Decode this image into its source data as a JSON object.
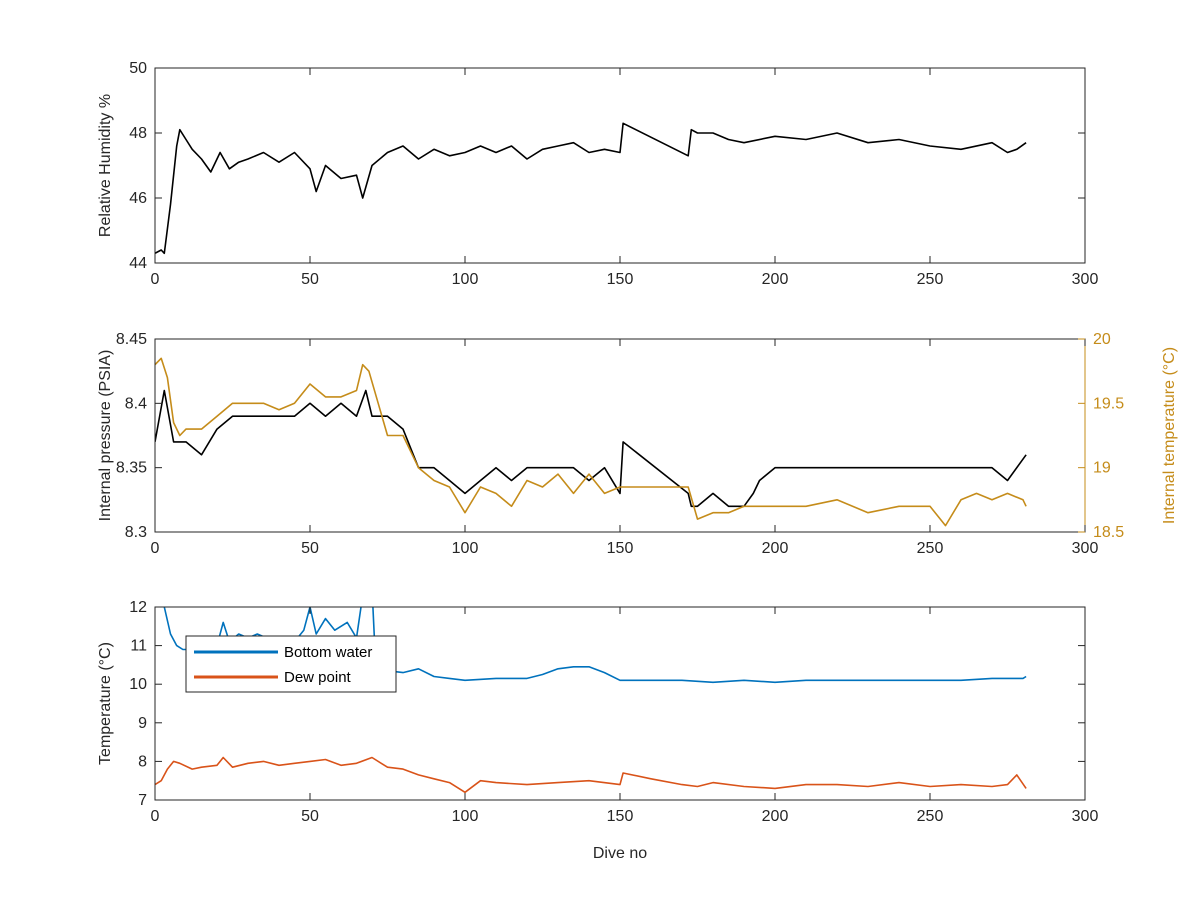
{
  "chart_data": [
    {
      "type": "line",
      "xlabel": "",
      "ylabel": "Relative Humidity %",
      "xlim": [
        0,
        300
      ],
      "ylim": [
        44,
        50
      ],
      "xticks": [
        "0",
        "50",
        "100",
        "150",
        "200",
        "250",
        "300"
      ],
      "yticks": [
        "44",
        "46",
        "48",
        "50"
      ],
      "series": [
        {
          "color": "#000000",
          "x": [
            0,
            2,
            3,
            5,
            7,
            8,
            10,
            12,
            15,
            18,
            21,
            24,
            27,
            30,
            35,
            40,
            45,
            50,
            52,
            55,
            60,
            65,
            67,
            70,
            75,
            80,
            85,
            90,
            95,
            100,
            105,
            110,
            115,
            120,
            125,
            130,
            135,
            140,
            145,
            150,
            151,
            172,
            173,
            175,
            180,
            185,
            190,
            200,
            210,
            220,
            230,
            240,
            250,
            260,
            270,
            275,
            278,
            281
          ],
          "y": [
            44.3,
            44.4,
            44.3,
            45.8,
            47.6,
            48.1,
            47.8,
            47.5,
            47.2,
            46.8,
            47.4,
            46.9,
            47.1,
            47.2,
            47.4,
            47.1,
            47.4,
            46.9,
            46.2,
            47.0,
            46.6,
            46.7,
            46.0,
            47.0,
            47.4,
            47.6,
            47.2,
            47.5,
            47.3,
            47.4,
            47.6,
            47.4,
            47.6,
            47.2,
            47.5,
            47.6,
            47.7,
            47.4,
            47.5,
            47.4,
            48.3,
            47.3,
            48.1,
            48.0,
            48.0,
            47.8,
            47.7,
            47.9,
            47.8,
            48.0,
            47.7,
            47.8,
            47.6,
            47.5,
            47.7,
            47.4,
            47.5,
            47.7
          ]
        }
      ]
    },
    {
      "type": "line",
      "xlabel": "",
      "ylabel": "Internal pressure (PSIA)",
      "ylabel_right": "Internal temperature (°C)",
      "xlim": [
        0,
        300
      ],
      "ylim": [
        8.3,
        8.45
      ],
      "ylim_right": [
        18.5,
        20
      ],
      "xticks": [
        "0",
        "50",
        "100",
        "150",
        "200",
        "250",
        "300"
      ],
      "yticks": [
        "8.3",
        "8.35",
        "8.4",
        "8.45"
      ],
      "yticks_right": [
        "18.5",
        "19",
        "19.5",
        "20"
      ],
      "series": [
        {
          "axis": "left",
          "color": "#000000",
          "x": [
            0,
            3,
            6,
            10,
            15,
            20,
            25,
            30,
            35,
            40,
            45,
            50,
            55,
            60,
            65,
            68,
            70,
            75,
            80,
            85,
            90,
            95,
            100,
            105,
            110,
            115,
            120,
            125,
            130,
            135,
            140,
            145,
            150,
            151,
            172,
            173,
            175,
            180,
            185,
            190,
            193,
            195,
            200,
            210,
            220,
            230,
            240,
            250,
            260,
            270,
            275,
            281
          ],
          "y": [
            8.37,
            8.41,
            8.37,
            8.37,
            8.36,
            8.38,
            8.39,
            8.39,
            8.39,
            8.39,
            8.39,
            8.4,
            8.39,
            8.4,
            8.39,
            8.41,
            8.39,
            8.39,
            8.38,
            8.35,
            8.35,
            8.34,
            8.33,
            8.34,
            8.35,
            8.34,
            8.35,
            8.35,
            8.35,
            8.35,
            8.34,
            8.35,
            8.33,
            8.37,
            8.33,
            8.32,
            8.32,
            8.33,
            8.32,
            8.32,
            8.33,
            8.34,
            8.35,
            8.35,
            8.35,
            8.35,
            8.35,
            8.35,
            8.35,
            8.35,
            8.34,
            8.36
          ]
        },
        {
          "axis": "right",
          "color": "#C58C1A",
          "x": [
            0,
            2,
            4,
            6,
            8,
            10,
            15,
            20,
            25,
            30,
            35,
            40,
            45,
            50,
            55,
            60,
            65,
            67,
            69,
            72,
            75,
            80,
            85,
            90,
            95,
            100,
            105,
            110,
            115,
            120,
            125,
            130,
            135,
            140,
            145,
            150,
            172,
            175,
            180,
            185,
            190,
            200,
            210,
            220,
            230,
            240,
            250,
            255,
            260,
            265,
            270,
            275,
            280,
            281
          ],
          "y": [
            19.8,
            19.85,
            19.7,
            19.35,
            19.25,
            19.3,
            19.3,
            19.4,
            19.5,
            19.5,
            19.5,
            19.45,
            19.5,
            19.65,
            19.55,
            19.55,
            19.6,
            19.8,
            19.75,
            19.5,
            19.25,
            19.25,
            19.0,
            18.9,
            18.85,
            18.65,
            18.85,
            18.8,
            18.7,
            18.9,
            18.85,
            18.95,
            18.8,
            18.95,
            18.8,
            18.85,
            18.85,
            18.6,
            18.65,
            18.65,
            18.7,
            18.7,
            18.7,
            18.75,
            18.65,
            18.7,
            18.7,
            18.55,
            18.75,
            18.8,
            18.75,
            18.8,
            18.75,
            18.7
          ]
        }
      ]
    },
    {
      "type": "line",
      "xlabel": "Dive no",
      "ylabel": "Temperature (°C)",
      "xlim": [
        0,
        300
      ],
      "ylim": [
        7,
        12
      ],
      "xticks": [
        "0",
        "50",
        "100",
        "150",
        "200",
        "250",
        "300"
      ],
      "yticks": [
        "7",
        "8",
        "9",
        "10",
        "11",
        "12"
      ],
      "legend_position": "top-left",
      "series": [
        {
          "name": "Bottom water",
          "color": "#0072BD",
          "x": [
            0,
            3,
            5,
            7,
            9,
            12,
            15,
            20,
            22,
            24,
            27,
            30,
            33,
            36,
            40,
            45,
            48,
            50,
            52,
            55,
            58,
            62,
            65,
            67,
            68,
            70,
            71,
            73,
            75,
            80,
            85,
            90,
            95,
            100,
            110,
            120,
            125,
            130,
            135,
            140,
            145,
            150,
            160,
            170,
            180,
            190,
            200,
            210,
            220,
            230,
            240,
            250,
            260,
            270,
            280,
            281
          ],
          "y": [
            13,
            12.0,
            11.3,
            11.0,
            10.9,
            10.9,
            10.9,
            11.0,
            11.6,
            11.1,
            11.3,
            11.2,
            11.3,
            11.2,
            11.1,
            11.1,
            11.4,
            12.0,
            11.3,
            11.7,
            11.4,
            11.6,
            11.2,
            12.3,
            13,
            12.5,
            10.8,
            10.4,
            10.35,
            10.3,
            10.4,
            10.2,
            10.15,
            10.1,
            10.15,
            10.15,
            10.25,
            10.4,
            10.45,
            10.45,
            10.3,
            10.1,
            10.1,
            10.1,
            10.05,
            10.1,
            10.05,
            10.1,
            10.1,
            10.1,
            10.1,
            10.1,
            10.1,
            10.15,
            10.15,
            10.2
          ]
        },
        {
          "name": "Dew point",
          "color": "#D95319",
          "x": [
            0,
            2,
            4,
            6,
            8,
            12,
            15,
            20,
            22,
            25,
            30,
            35,
            40,
            45,
            50,
            55,
            60,
            65,
            70,
            75,
            80,
            85,
            90,
            95,
            100,
            105,
            110,
            120,
            130,
            140,
            150,
            151,
            160,
            170,
            175,
            180,
            190,
            200,
            210,
            220,
            230,
            240,
            250,
            260,
            270,
            275,
            278,
            281
          ],
          "y": [
            7.4,
            7.5,
            7.8,
            8.0,
            7.95,
            7.8,
            7.85,
            7.9,
            8.1,
            7.85,
            7.95,
            8.0,
            7.9,
            7.95,
            8.0,
            8.05,
            7.9,
            7.95,
            8.1,
            7.85,
            7.8,
            7.65,
            7.55,
            7.45,
            7.2,
            7.5,
            7.45,
            7.4,
            7.45,
            7.5,
            7.4,
            7.7,
            7.55,
            7.4,
            7.35,
            7.45,
            7.35,
            7.3,
            7.4,
            7.4,
            7.35,
            7.45,
            7.35,
            7.4,
            7.35,
            7.4,
            7.65,
            7.3
          ]
        }
      ]
    }
  ]
}
